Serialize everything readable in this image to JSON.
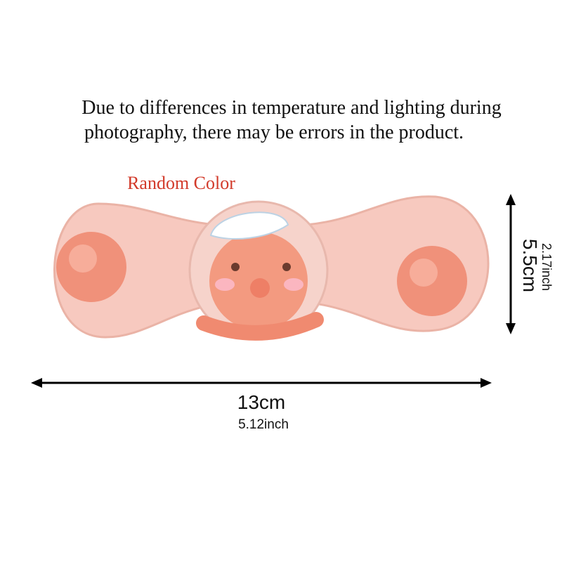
{
  "notice": {
    "line1": "Due to differences in temperature and lighting during",
    "line2": "photography, there may be errors in the product."
  },
  "color_note": "Random Color",
  "dimensions": {
    "length_cm": "13cm",
    "length_inch": "5.12inch",
    "height_cm": "5.5cm",
    "height_inch": "2.17inch"
  }
}
